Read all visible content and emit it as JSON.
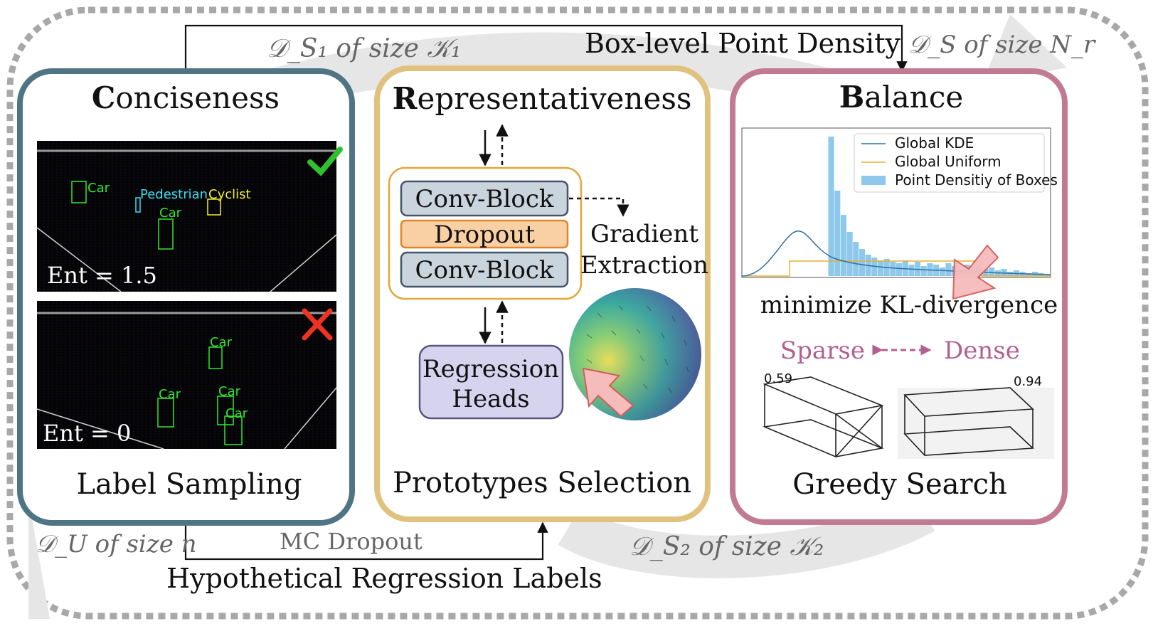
{
  "top": {
    "ds1_label": "𝒟_S₁ of size 𝒦₁",
    "box_level_label": "Box-level Point Density",
    "ds_label": "𝒟_S of size N_r"
  },
  "bottom": {
    "du_label": "𝒟_U of size n",
    "mc_dropout": "MC Dropout",
    "hypothetical": "Hypothetical Regression Labels",
    "ds2_label": "𝒟_S₂ of size 𝒦₂"
  },
  "conciseness": {
    "title_cap": "C",
    "title_rest": "onciseness",
    "subtitle": "Label Sampling",
    "scene1": {
      "ent": "Ent = 1.5",
      "labels": [
        "Car",
        "Pedestrian",
        "Cyclist",
        "Car"
      ]
    },
    "scene2": {
      "ent": "Ent = 0",
      "labels": [
        "Car",
        "Car",
        "Car",
        "Car"
      ]
    }
  },
  "representativeness": {
    "title_cap": "R",
    "title_rest": "epresentativeness",
    "conv1": "Conv-Block",
    "dropout": "Dropout",
    "conv2": "Conv-Block",
    "gradient1": "Gradient",
    "gradient2": "Extraction",
    "regression1": "Regression",
    "regression2": "Heads",
    "subtitle": "Prototypes Selection"
  },
  "balance": {
    "title_cap": "B",
    "title_rest": "alance",
    "legend": [
      "Global KDE",
      "Global Uniform",
      "Point Densitiy of Boxes"
    ],
    "kl_label": "minimize KL-divergence",
    "sparse": "Sparse",
    "dense": "Dense",
    "box1_value": "0.59",
    "box2_value": "0.94",
    "subtitle": "Greedy Search"
  },
  "colors": {
    "conciseness_border": "#4f7585",
    "representativeness_border": "#e0c27e",
    "balance_border": "#c27a92",
    "conv_block": "#c9d4dd",
    "dropout": "#f9cfa4",
    "regression": "#d6d3ee",
    "car_label": "#2ee82e",
    "pedestrian_label": "#36e0f0",
    "cyclist_label": "#f3ef2d",
    "check": "#2fbf2f",
    "cross": "#ee3322",
    "kde": "#2f70a8",
    "uniform": "#e3b035",
    "histogram": "#8ec8ea",
    "pink_arrow": "#f6bcbc"
  }
}
